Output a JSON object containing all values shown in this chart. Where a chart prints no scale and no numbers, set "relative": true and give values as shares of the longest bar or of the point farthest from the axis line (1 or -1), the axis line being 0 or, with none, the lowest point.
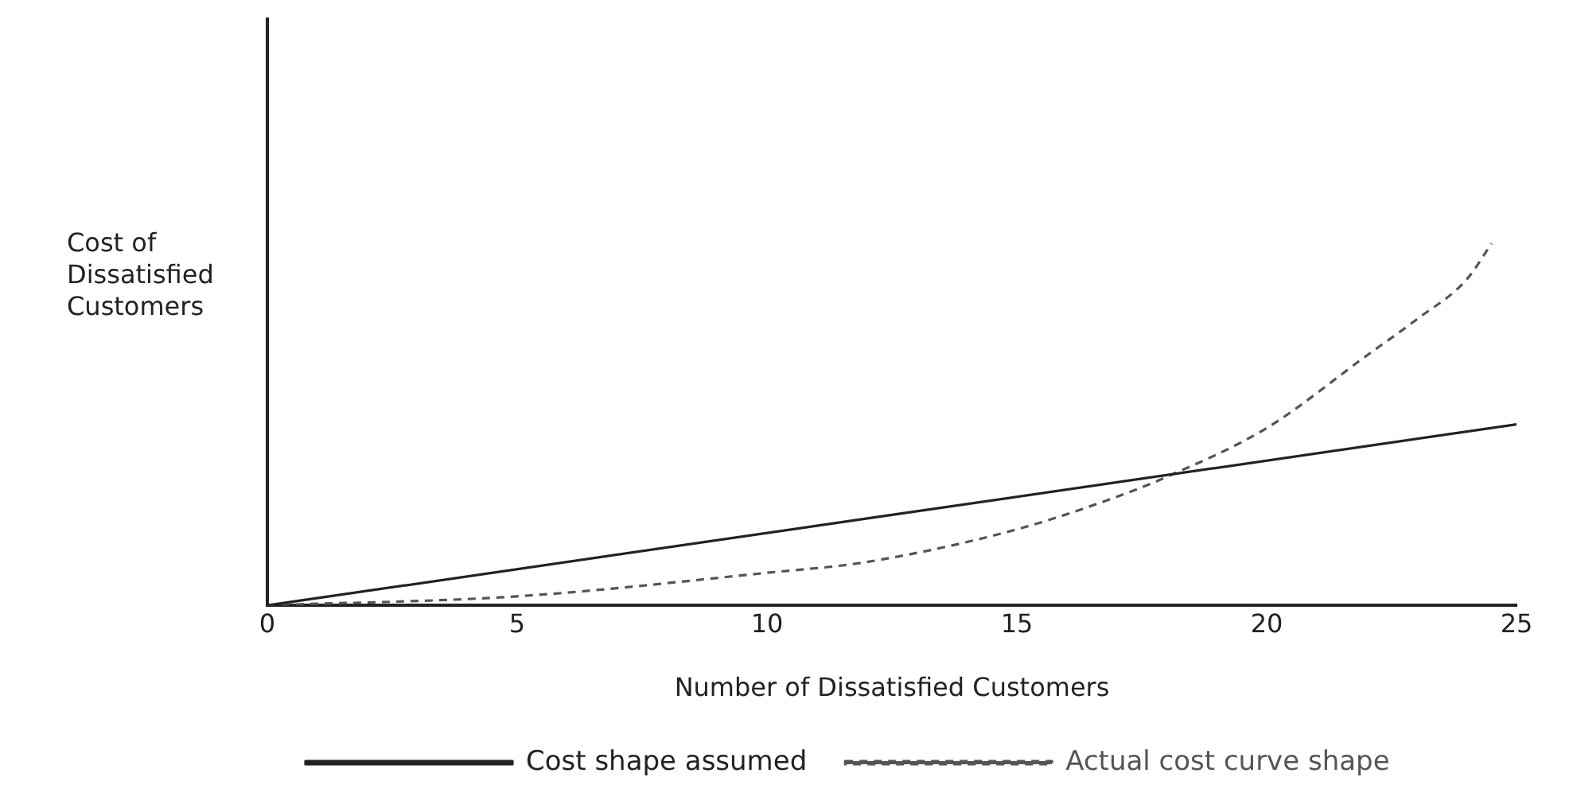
{
  "chart_data": {
    "type": "line",
    "relative": true,
    "xlabel": "Number of Dissatisfied Customers",
    "ylabel": "Cost of Dissatisfied Customers",
    "xlim": [
      0,
      25
    ],
    "xticks": [
      0,
      5,
      10,
      15,
      20,
      25
    ],
    "grid": false,
    "legend": "bottom",
    "marker": "none",
    "series": [
      {
        "name": "Cost shape assumed",
        "color": "#222222",
        "line_style": "solid",
        "x": [
          0,
          25
        ],
        "values": [
          0,
          0.5
        ]
      },
      {
        "name": "Actual cost curve shape",
        "color": "#555555",
        "line_style": "dashed",
        "x": [
          0,
          5,
          10,
          12,
          15,
          17,
          18,
          20,
          22,
          23,
          24,
          24.5
        ],
        "values": [
          0,
          0.025,
          0.09,
          0.12,
          0.21,
          0.3,
          0.355,
          0.49,
          0.69,
          0.79,
          0.9,
          1
        ]
      }
    ]
  }
}
